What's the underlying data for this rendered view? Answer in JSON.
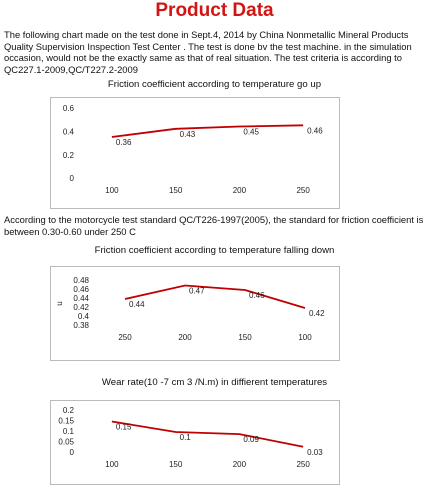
{
  "title": "Product Data",
  "intro": "The following chart made on the test done in Sept.4, 2014 by China Nonmetallic Mineral Products Quality Supervision Inspection Test Center . The test is done bv the test machine. in the simulation occasion, would not be the exactly same as that of real situation. The test criteria is according to QC227.1-2009,QC/T227.2-2009",
  "note": "According to the motorcycle test standard QC/T226-1997(2005), the standard for friction coefficient is between 0.30-0.60 under 250 C",
  "chart_data": [
    {
      "type": "line",
      "title": "Friction coefficient according to temperature go up",
      "categories": [
        "100",
        "150",
        "200",
        "250"
      ],
      "values": [
        0.36,
        0.43,
        0.45,
        0.46
      ],
      "color": "#c00000",
      "ylim": [
        0,
        0.6
      ],
      "yticks": [
        0,
        0.2,
        0.4,
        0.6
      ],
      "grid": false
    },
    {
      "type": "line",
      "title": "Friction coefficient according to temperature falling down",
      "y_label": "u",
      "categories": [
        "250",
        "200",
        "150",
        "100"
      ],
      "values": [
        0.44,
        0.47,
        0.46,
        0.42
      ],
      "color": "#c00000",
      "ylim": [
        0.38,
        0.48
      ],
      "yticks": [
        0.38,
        0.4,
        0.42,
        0.44,
        0.46,
        0.48
      ],
      "grid": false
    },
    {
      "type": "line",
      "title": "Wear rate(10 -7 cm 3 /N.m) in diffierent temperatures",
      "categories": [
        "100",
        "150",
        "200",
        "250"
      ],
      "values": [
        0.15,
        0.1,
        0.09,
        0.03
      ],
      "color": "#c00000",
      "ylim": [
        0,
        0.2
      ],
      "yticks": [
        0,
        0.05,
        0.1,
        0.15,
        0.2
      ],
      "grid": false
    }
  ]
}
